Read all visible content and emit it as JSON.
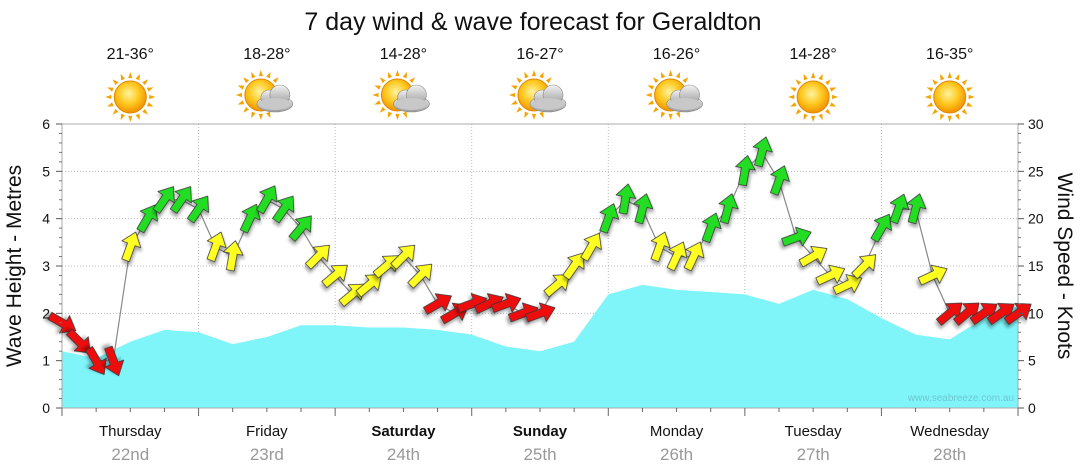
{
  "chart_data": {
    "type": "area",
    "title": "7 day wind & wave forecast for Geraldton",
    "ylabel_left": "Wave Height - Metres",
    "ylabel_right": "Wind Speed - Knots",
    "watermark": "www.seabreeze.com.au",
    "ylim_left": [
      0,
      6
    ],
    "ylim_right": [
      0,
      30
    ],
    "yticks_left": [
      "0",
      "1",
      "2",
      "3",
      "4",
      "5",
      "6"
    ],
    "yticks_right": [
      "0",
      "5",
      "10",
      "15",
      "20",
      "25",
      "30"
    ],
    "x_range_days": [
      0,
      7
    ],
    "days": [
      {
        "name": "Thursday",
        "date": "22nd",
        "bold": false,
        "temp": "21-36°",
        "icon": "sun-icon"
      },
      {
        "name": "Friday",
        "date": "23rd",
        "bold": false,
        "temp": "18-28°",
        "icon": "sun-cloud-icon"
      },
      {
        "name": "Saturday",
        "date": "24th",
        "bold": true,
        "temp": "14-28°",
        "icon": "sun-cloud-icon"
      },
      {
        "name": "Sunday",
        "date": "25th",
        "bold": true,
        "temp": "16-27°",
        "icon": "sun-cloud-icon"
      },
      {
        "name": "Monday",
        "date": "26th",
        "bold": false,
        "temp": "16-26°",
        "icon": "sun-cloud-icon"
      },
      {
        "name": "Tuesday",
        "date": "27th",
        "bold": false,
        "temp": "14-28°",
        "icon": "sun-icon"
      },
      {
        "name": "Wednesday",
        "date": "28th",
        "bold": false,
        "temp": "16-35°",
        "icon": "sun-icon"
      }
    ],
    "wave_series": {
      "name": "Wave Height - Metres",
      "color": "#7ff5fa",
      "x": [
        0,
        0.25,
        0.5,
        0.75,
        1,
        1.25,
        1.5,
        1.75,
        2,
        2.25,
        2.5,
        2.75,
        3,
        3.25,
        3.5,
        3.75,
        4,
        4.25,
        4.5,
        4.75,
        5,
        5.25,
        5.5,
        5.75,
        6,
        6.25,
        6.5,
        6.75,
        7
      ],
      "values": [
        1.2,
        1.05,
        1.4,
        1.65,
        1.6,
        1.35,
        1.5,
        1.75,
        1.75,
        1.7,
        1.7,
        1.65,
        1.55,
        1.3,
        1.2,
        1.4,
        2.4,
        2.6,
        2.5,
        2.45,
        2.4,
        2.2,
        2.5,
        2.3,
        1.9,
        1.55,
        1.45,
        1.9,
        2.15
      ]
    },
    "wind_series": {
      "name": "Wind Speed - Knots",
      "colors": {
        "light": "#ee1111",
        "moderate": "#ffff22",
        "strong": "#22dd22"
      },
      "thresholds_knots": [
        12,
        18
      ],
      "x": [
        0,
        0.125,
        0.25,
        0.375,
        0.5,
        0.625,
        0.75,
        0.875,
        1,
        1.125,
        1.25,
        1.375,
        1.5,
        1.625,
        1.75,
        1.875,
        2,
        2.125,
        2.25,
        2.375,
        2.5,
        2.625,
        2.75,
        2.875,
        3,
        3.125,
        3.25,
        3.375,
        3.5,
        3.625,
        3.75,
        3.875,
        4,
        4.125,
        4.25,
        4.375,
        4.5,
        4.625,
        4.75,
        4.875,
        5,
        5.125,
        5.25,
        5.375,
        5.5,
        5.625,
        5.75,
        5.875,
        6,
        6.125,
        6.25,
        6.375,
        6.5,
        6.625,
        6.75,
        6.875,
        7
      ],
      "speeds": [
        9,
        7,
        5,
        5,
        17,
        20,
        22,
        22,
        21,
        17,
        16,
        20,
        22,
        21,
        19,
        16,
        14,
        12,
        13,
        15,
        16,
        14,
        11,
        10,
        11,
        11,
        11,
        10,
        10,
        13,
        15,
        17,
        20,
        22,
        21,
        17,
        16,
        16,
        19,
        21,
        25,
        27,
        24,
        18,
        16,
        14,
        13,
        15,
        19,
        21,
        21,
        14,
        10,
        10,
        10,
        10,
        10
      ],
      "directions_deg": [
        300,
        315,
        330,
        340,
        200,
        210,
        215,
        215,
        215,
        200,
        190,
        205,
        210,
        215,
        220,
        225,
        230,
        230,
        230,
        230,
        225,
        225,
        240,
        240,
        250,
        245,
        250,
        250,
        250,
        230,
        215,
        210,
        200,
        190,
        195,
        200,
        205,
        205,
        200,
        195,
        190,
        195,
        200,
        250,
        240,
        245,
        245,
        225,
        210,
        200,
        195,
        245,
        230,
        230,
        235,
        235,
        235
      ]
    }
  }
}
